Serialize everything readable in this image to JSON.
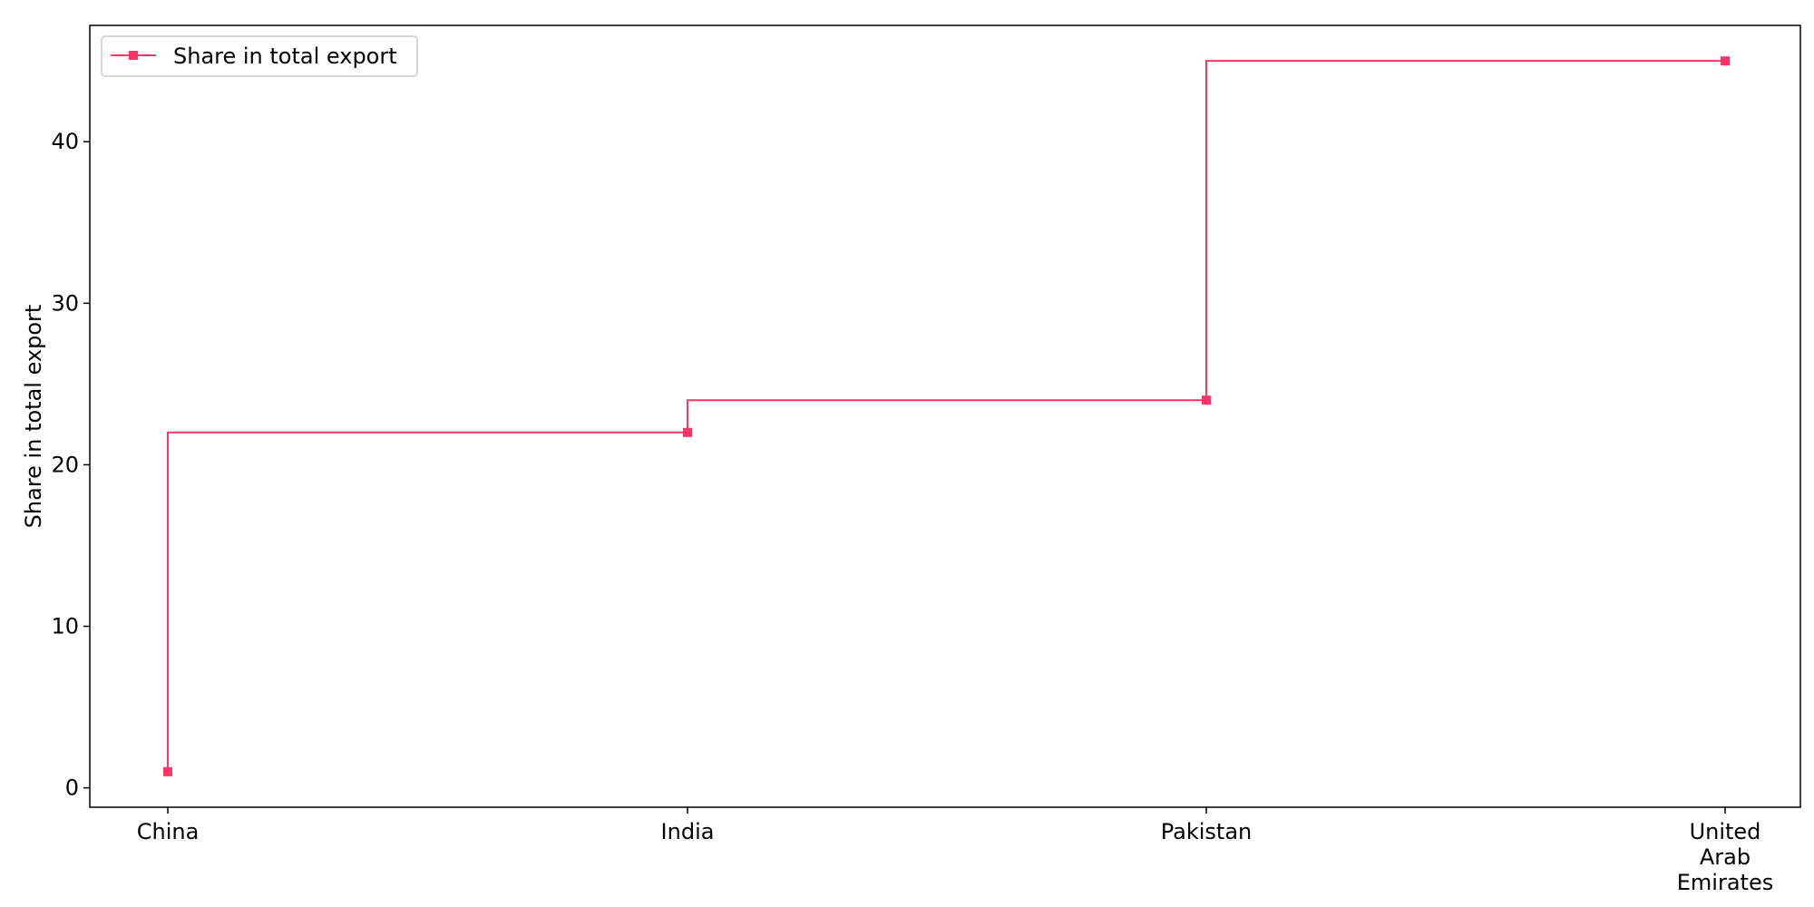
{
  "chart_data": {
    "type": "line",
    "step": "post",
    "categories": [
      "China",
      "India",
      "Pakistan",
      "United Arab Emirates"
    ],
    "category_tick_lines": [
      [
        "China"
      ],
      [
        "India"
      ],
      [
        "Pakistan"
      ],
      [
        "United",
        "Arab",
        "Emirates"
      ]
    ],
    "series": [
      {
        "name": "Share in total export",
        "values": [
          1,
          22,
          24,
          45
        ],
        "color": "#ff3366",
        "marker": "square"
      }
    ],
    "xlabel": "",
    "ylabel": "Share in total export",
    "ylim": [
      -1.2,
      47.2
    ],
    "yticks": [
      0,
      10,
      20,
      30,
      40
    ],
    "grid": false,
    "legend_position": "top-left"
  }
}
